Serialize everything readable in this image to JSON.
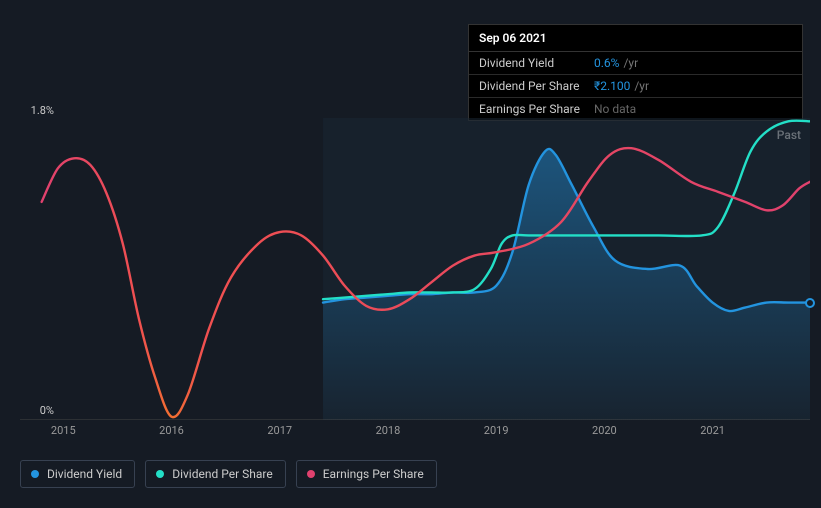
{
  "tooltip": {
    "date": "Sep 06 2021",
    "rows": [
      {
        "label": "Dividend Yield",
        "value": "0.6%",
        "unit": "/yr",
        "value_color": "#2394df"
      },
      {
        "label": "Dividend Per Share",
        "value": "₹2.100",
        "unit": "/yr",
        "value_color": "#2394df"
      },
      {
        "label": "Earnings Per Share",
        "nodata": "No data"
      }
    ]
  },
  "chart": {
    "type": "line",
    "x_domain": [
      2014.6,
      2021.9
    ],
    "y_domain_pct": [
      0,
      1.8
    ],
    "y_axis": {
      "top_label": "1.8%",
      "bottom_label": "0%",
      "label_fontsize": 11,
      "label_color": "#ccc"
    },
    "x_ticks": [
      2015,
      2016,
      2017,
      2018,
      2019,
      2020,
      2021
    ],
    "background_color": "#151b24",
    "shaded_region": {
      "x_start": 2017.4,
      "x_end": 2021.9,
      "fill": "#1a2633",
      "opacity": 0.55
    },
    "past_label": "Past",
    "series": {
      "dividend_yield": {
        "color": "#2394df",
        "width": 2.4,
        "area_fill": "#1e4e6e",
        "area_opacity": 0.35,
        "end_dot": true,
        "points": [
          [
            2017.4,
            0.7
          ],
          [
            2017.6,
            0.72
          ],
          [
            2017.8,
            0.73
          ],
          [
            2018.0,
            0.74
          ],
          [
            2018.2,
            0.75
          ],
          [
            2018.4,
            0.75
          ],
          [
            2018.6,
            0.76
          ],
          [
            2018.8,
            0.76
          ],
          [
            2019.0,
            0.8
          ],
          [
            2019.15,
            1.0
          ],
          [
            2019.3,
            1.4
          ],
          [
            2019.45,
            1.6
          ],
          [
            2019.55,
            1.58
          ],
          [
            2019.7,
            1.4
          ],
          [
            2019.9,
            1.15
          ],
          [
            2020.1,
            0.95
          ],
          [
            2020.4,
            0.9
          ],
          [
            2020.7,
            0.92
          ],
          [
            2020.85,
            0.8
          ],
          [
            2021.0,
            0.7
          ],
          [
            2021.15,
            0.65
          ],
          [
            2021.3,
            0.67
          ],
          [
            2021.5,
            0.7
          ],
          [
            2021.7,
            0.7
          ],
          [
            2021.9,
            0.7
          ]
        ]
      },
      "dividend_per_share": {
        "color": "#23dfc7",
        "width": 2.4,
        "points": [
          [
            2017.4,
            0.72
          ],
          [
            2017.6,
            0.73
          ],
          [
            2017.8,
            0.74
          ],
          [
            2018.0,
            0.75
          ],
          [
            2018.2,
            0.76
          ],
          [
            2018.4,
            0.76
          ],
          [
            2018.6,
            0.76
          ],
          [
            2018.8,
            0.78
          ],
          [
            2018.95,
            0.9
          ],
          [
            2019.05,
            1.05
          ],
          [
            2019.15,
            1.1
          ],
          [
            2019.3,
            1.1
          ],
          [
            2019.6,
            1.1
          ],
          [
            2020.0,
            1.1
          ],
          [
            2020.5,
            1.1
          ],
          [
            2020.9,
            1.1
          ],
          [
            2021.05,
            1.15
          ],
          [
            2021.2,
            1.35
          ],
          [
            2021.35,
            1.6
          ],
          [
            2021.5,
            1.72
          ],
          [
            2021.7,
            1.78
          ],
          [
            2021.9,
            1.78
          ]
        ]
      },
      "earnings_per_share": {
        "color_stops": [
          [
            2014.8,
            "#e0416e"
          ],
          [
            2015.7,
            "#f05050"
          ],
          [
            2016.0,
            "#f27030"
          ],
          [
            2016.3,
            "#f05050"
          ],
          [
            2021.9,
            "#e0416e"
          ]
        ],
        "width": 2.4,
        "points": [
          [
            2014.8,
            1.3
          ],
          [
            2014.95,
            1.5
          ],
          [
            2015.1,
            1.56
          ],
          [
            2015.25,
            1.52
          ],
          [
            2015.4,
            1.35
          ],
          [
            2015.55,
            1.05
          ],
          [
            2015.7,
            0.6
          ],
          [
            2015.85,
            0.25
          ],
          [
            2016.0,
            0.02
          ],
          [
            2016.15,
            0.15
          ],
          [
            2016.35,
            0.55
          ],
          [
            2016.55,
            0.85
          ],
          [
            2016.8,
            1.05
          ],
          [
            2017.0,
            1.12
          ],
          [
            2017.2,
            1.1
          ],
          [
            2017.4,
            0.98
          ],
          [
            2017.6,
            0.8
          ],
          [
            2017.8,
            0.68
          ],
          [
            2018.0,
            0.66
          ],
          [
            2018.2,
            0.72
          ],
          [
            2018.4,
            0.82
          ],
          [
            2018.6,
            0.92
          ],
          [
            2018.8,
            0.98
          ],
          [
            2019.0,
            1.0
          ],
          [
            2019.3,
            1.05
          ],
          [
            2019.6,
            1.18
          ],
          [
            2019.85,
            1.42
          ],
          [
            2020.05,
            1.58
          ],
          [
            2020.25,
            1.62
          ],
          [
            2020.5,
            1.55
          ],
          [
            2020.8,
            1.42
          ],
          [
            2021.05,
            1.36
          ],
          [
            2021.3,
            1.3
          ],
          [
            2021.5,
            1.25
          ],
          [
            2021.65,
            1.28
          ],
          [
            2021.8,
            1.38
          ],
          [
            2021.9,
            1.42
          ]
        ]
      }
    }
  },
  "legend": [
    {
      "label": "Dividend Yield",
      "color": "#2394df"
    },
    {
      "label": "Dividend Per Share",
      "color": "#23dfc7"
    },
    {
      "label": "Earnings Per Share",
      "color": "#e0416e"
    }
  ]
}
